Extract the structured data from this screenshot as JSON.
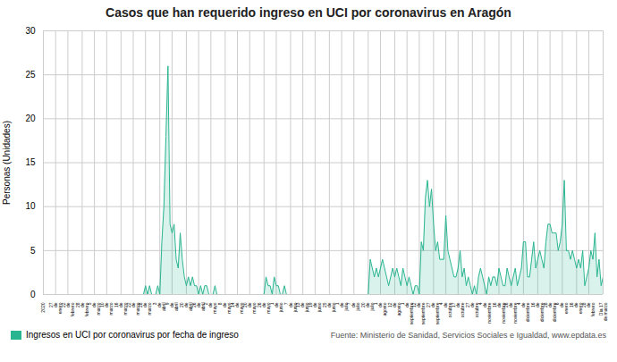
{
  "chart_data": {
    "type": "area",
    "title": "Casos que han requerido ingreso en UCI por coronavirus en Aragón",
    "ylabel": "Personas (Unidades)",
    "ylim": [
      0,
      30
    ],
    "yticks": [
      0,
      5,
      10,
      15,
      20,
      25,
      30
    ],
    "grid": true,
    "legend": "lower left",
    "annotations": [
      "Fuente: Ministerio de Sanidad, Servicios Sociales e Igualdad, www.epdata.es"
    ],
    "categories": [
      "2020",
      null,
      null,
      null,
      null,
      null,
      "27\nde\nenero",
      null,
      null,
      null,
      null,
      null,
      "22\nde\nfebrero",
      null,
      null,
      null,
      null,
      null,
      null,
      "28\nde\nfebrero",
      null,
      null,
      null,
      null,
      null,
      "5\nde\nmarzo",
      null,
      null,
      null,
      null,
      null,
      "10\nde\nmarzo",
      null,
      null,
      null,
      null,
      null,
      null,
      "16\nde\nmarzo",
      null,
      null,
      null,
      null,
      null,
      "22\nde\nmarzo",
      null,
      null,
      null,
      null,
      null,
      "28\nde\nmarzo",
      null,
      null,
      null,
      null,
      null,
      null,
      "3\nde\nabril",
      null,
      null,
      null,
      null,
      null,
      "9\nde\nabril",
      null,
      null,
      null,
      null,
      null,
      null,
      "20\nde\nabril",
      null,
      null,
      null,
      null,
      null,
      "26\nde\nabril",
      null,
      null,
      null,
      null,
      null,
      "2\nde\nmayo",
      null,
      null,
      null,
      null,
      null,
      null,
      "8\nde\nmayo",
      null,
      null,
      null,
      null,
      null,
      "14\nde\nmayo",
      null,
      null,
      null,
      null,
      null,
      "20\nde\nmayo",
      null,
      null,
      null,
      null,
      null,
      null,
      "26\nde\nmayo",
      null,
      null,
      null,
      null,
      null,
      "1\nde\njunio",
      null,
      null,
      null,
      null,
      null,
      null,
      "7\nde\njunio",
      null,
      null,
      null,
      null,
      null,
      "13\nde\njunio",
      null,
      null,
      null,
      null,
      null,
      "19\nde\njunio",
      null,
      null,
      null,
      null,
      null,
      null,
      "25\nde\njunio",
      null,
      null,
      null,
      null,
      null,
      "1\nde\njulio",
      null,
      null,
      null,
      null,
      null,
      "7\nde\njulio",
      null,
      null,
      null,
      null,
      null,
      null,
      "20\nde\njulio",
      null,
      null,
      null,
      null,
      null,
      "1\nde\nagosto",
      null,
      null,
      null,
      null,
      null,
      null,
      "12\nde\nagosto",
      null,
      null,
      null,
      null,
      null,
      "1\nde\nseptiembre",
      null,
      null,
      null,
      null,
      null,
      "12\nde\nseptiembre",
      null,
      null,
      null,
      null,
      null,
      null,
      "27\nde\nseptiembre",
      null,
      null,
      null,
      null,
      null,
      "4\nde\noctubre",
      null,
      null,
      null,
      null,
      null,
      "17\nde\noctubre",
      null,
      null,
      null,
      null,
      null,
      null,
      "27\nde\noctubre",
      null,
      null,
      null,
      null,
      null,
      "4\nde\nnoviembre",
      null,
      null,
      null,
      null,
      null,
      null,
      "16\nde\nnoviembre",
      null,
      null,
      null,
      null,
      null,
      "26\nde\nnoviembre",
      null,
      null,
      null,
      null,
      null,
      "4\nde\ndiciembre",
      null,
      null,
      null,
      null,
      null,
      null,
      "16\nde\ndiciembre",
      null,
      null,
      null,
      null,
      null,
      "28\nde\ndiciembre",
      null,
      null,
      null,
      null,
      null,
      "6\nde\nenero",
      null,
      null,
      null,
      null,
      null,
      null,
      "16\nde\nenero",
      null,
      null,
      null,
      null,
      null,
      "28\nde\nfebrero",
      null,
      null,
      null,
      null,
      null,
      null,
      "Día 17\nde marzo"
    ],
    "series": [
      {
        "name": "Ingresos en UCI por coronavirus por fecha de ingreso",
        "color": "#2ab591",
        "values": [
          0,
          0,
          0,
          0,
          0,
          0,
          0,
          0,
          0,
          0,
          0,
          0,
          0,
          0,
          0,
          0,
          0,
          0,
          0,
          0,
          0,
          0,
          0,
          0,
          0,
          0,
          0,
          0,
          0,
          0,
          0,
          0,
          0,
          0,
          0,
          0,
          0,
          0,
          0,
          0,
          0,
          0,
          0,
          0,
          0,
          0,
          0,
          0,
          0,
          0,
          1,
          0,
          1,
          0,
          0,
          0,
          1,
          0,
          6,
          10,
          18,
          26,
          8,
          7,
          8,
          4,
          3,
          7,
          4,
          2,
          1,
          2,
          1,
          2,
          1,
          1,
          0,
          1,
          0,
          1,
          1,
          0,
          0,
          0,
          1,
          0,
          0,
          0,
          0,
          0,
          0,
          0,
          0,
          0,
          0,
          0,
          0,
          0,
          0,
          0,
          0,
          0,
          0,
          0,
          0,
          0,
          0,
          0,
          0,
          2,
          1,
          1,
          0,
          2,
          1,
          1,
          0,
          0,
          1,
          0,
          0,
          0,
          0,
          0,
          0,
          0,
          0,
          0,
          0,
          0,
          0,
          0,
          0,
          0,
          0,
          0,
          0,
          0,
          0,
          0,
          0,
          0,
          0,
          0,
          0,
          0,
          0,
          0,
          0,
          0,
          0,
          0,
          0,
          0,
          0,
          0,
          0,
          0,
          0,
          0,
          4,
          3,
          2,
          3,
          2,
          3,
          4,
          3,
          2,
          1,
          2,
          3,
          2,
          3,
          2,
          1,
          3,
          2,
          1,
          2,
          1,
          0,
          1,
          1,
          0,
          6,
          5,
          11,
          13,
          10,
          12,
          8,
          5,
          6,
          4,
          4,
          4,
          9,
          5,
          4,
          3,
          2,
          2,
          3,
          5,
          2,
          3,
          1,
          2,
          1,
          0,
          1,
          0,
          2,
          3,
          2,
          1,
          0,
          2,
          1,
          2,
          2,
          1,
          3,
          2,
          1,
          1,
          3,
          2,
          1,
          2,
          3,
          1,
          2,
          3,
          6,
          6,
          2,
          2,
          4,
          6,
          3,
          4,
          5,
          4,
          3,
          6,
          8,
          8,
          7,
          7,
          7,
          5,
          6,
          8,
          13,
          5,
          5,
          4,
          5,
          4,
          3,
          4,
          3,
          5,
          1,
          2,
          3,
          5,
          4,
          7,
          2,
          4,
          1,
          2
        ]
      }
    ]
  }
}
